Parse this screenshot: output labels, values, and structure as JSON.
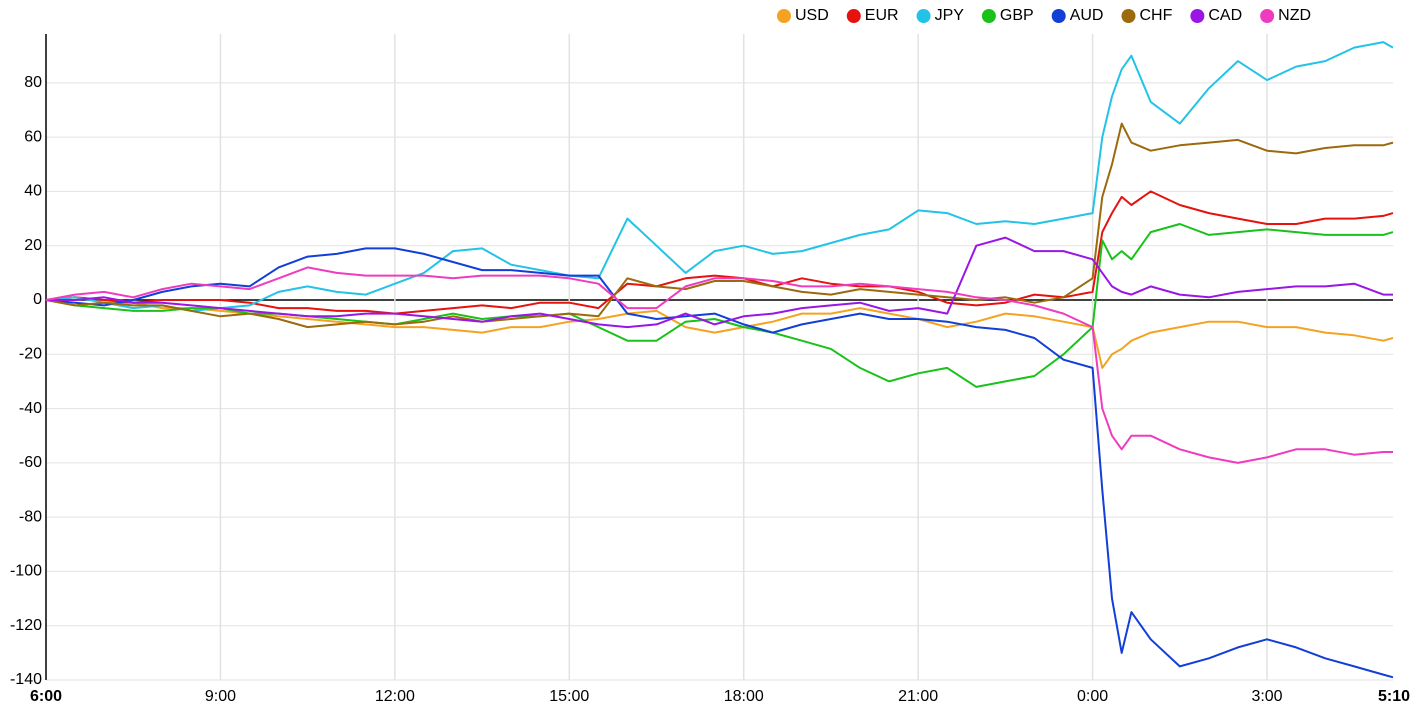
{
  "chart_data": {
    "type": "line",
    "x": [
      "6:00",
      "6:30",
      "7:00",
      "7:30",
      "8:00",
      "8:30",
      "9:00",
      "9:30",
      "10:00",
      "10:30",
      "11:00",
      "11:30",
      "12:00",
      "12:30",
      "13:00",
      "13:30",
      "14:00",
      "14:30",
      "15:00",
      "15:30",
      "16:00",
      "16:30",
      "17:00",
      "17:30",
      "18:00",
      "18:30",
      "19:00",
      "19:30",
      "20:00",
      "20:30",
      "21:00",
      "21:30",
      "22:00",
      "22:30",
      "23:00",
      "23:30",
      "0:00",
      "0:10",
      "0:20",
      "0:30",
      "0:40",
      "1:00",
      "1:30",
      "2:00",
      "2:30",
      "3:00",
      "3:30",
      "4:00",
      "4:30",
      "5:00",
      "5:10"
    ],
    "xticks": [
      "6:00",
      "9:00",
      "12:00",
      "15:00",
      "18:00",
      "21:00",
      "0:00",
      "3:00",
      "5:10"
    ],
    "ylim": [
      -140,
      98
    ],
    "yticks": [
      -140,
      -120,
      -100,
      -80,
      -60,
      -40,
      -20,
      0,
      20,
      40,
      60,
      80
    ],
    "grid": true,
    "legend": "top-right",
    "series": [
      {
        "name": "USD",
        "color": "#f5a221",
        "values": [
          0,
          1,
          -1,
          -1,
          -3,
          -3,
          -4,
          -5,
          -6,
          -7,
          -8,
          -9,
          -10,
          -10,
          -11,
          -12,
          -10,
          -10,
          -8,
          -7,
          -5,
          -4,
          -10,
          -12,
          -10,
          -8,
          -5,
          -5,
          -3,
          -5,
          -7,
          -10,
          -8,
          -5,
          -6,
          -8,
          -10,
          -25,
          -20,
          -18,
          -15,
          -12,
          -10,
          -8,
          -8,
          -10,
          -10,
          -12,
          -13,
          -15,
          -14
        ]
      },
      {
        "name": "EUR",
        "color": "#e5120e",
        "values": [
          0,
          1,
          0,
          -1,
          0,
          0,
          0,
          -1,
          -3,
          -3,
          -4,
          -4,
          -5,
          -4,
          -3,
          -2,
          -3,
          -1,
          -1,
          -3,
          6,
          5,
          8,
          9,
          8,
          5,
          8,
          6,
          5,
          5,
          3,
          -1,
          -2,
          -1,
          2,
          1,
          3,
          25,
          32,
          38,
          35,
          40,
          35,
          32,
          30,
          28,
          28,
          30,
          30,
          31,
          32
        ]
      },
      {
        "name": "JPY",
        "color": "#22c3e6",
        "values": [
          0,
          1,
          -1,
          -3,
          -2,
          -4,
          -3,
          -2,
          3,
          5,
          3,
          2,
          6,
          10,
          18,
          19,
          13,
          11,
          9,
          8,
          30,
          20,
          10,
          18,
          20,
          17,
          18,
          21,
          24,
          26,
          33,
          32,
          28,
          29,
          28,
          30,
          32,
          60,
          75,
          85,
          90,
          73,
          65,
          78,
          88,
          81,
          86,
          88,
          93,
          95,
          93
        ]
      },
      {
        "name": "GBP",
        "color": "#19c219",
        "values": [
          0,
          -2,
          -3,
          -4,
          -4,
          -3,
          -3,
          -5,
          -5,
          -6,
          -7,
          -8,
          -9,
          -7,
          -5,
          -7,
          -6,
          -6,
          -5,
          -10,
          -15,
          -15,
          -8,
          -7,
          -10,
          -12,
          -15,
          -18,
          -25,
          -30,
          -27,
          -25,
          -32,
          -30,
          -28,
          -20,
          -10,
          22,
          15,
          18,
          15,
          25,
          28,
          24,
          25,
          26,
          25,
          24,
          24,
          24,
          25
        ]
      },
      {
        "name": "AUD",
        "color": "#113fd8",
        "values": [
          0,
          -1,
          -2,
          0,
          3,
          5,
          6,
          5,
          12,
          16,
          17,
          19,
          19,
          17,
          14,
          11,
          11,
          10,
          9,
          9,
          -5,
          -7,
          -6,
          -5,
          -9,
          -12,
          -9,
          -7,
          -5,
          -7,
          -7,
          -8,
          -10,
          -11,
          -14,
          -22,
          -25,
          -70,
          -110,
          -130,
          -115,
          -125,
          -135,
          -132,
          -128,
          -125,
          -128,
          -132,
          -135,
          -138,
          -139
        ]
      },
      {
        "name": "CHF",
        "color": "#9b6a0c",
        "values": [
          0,
          -2,
          -1,
          -2,
          -2,
          -4,
          -6,
          -5,
          -7,
          -10,
          -9,
          -8,
          -9,
          -8,
          -6,
          -8,
          -7,
          -6,
          -5,
          -6,
          8,
          5,
          4,
          7,
          7,
          5,
          3,
          2,
          4,
          3,
          2,
          1,
          0,
          1,
          -1,
          1,
          8,
          38,
          50,
          65,
          58,
          55,
          57,
          58,
          59,
          55,
          54,
          56,
          57,
          57,
          58
        ]
      },
      {
        "name": "CAD",
        "color": "#9a16e6",
        "values": [
          0,
          0,
          1,
          -1,
          -1,
          -2,
          -3,
          -4,
          -5,
          -6,
          -6,
          -5,
          -5,
          -6,
          -7,
          -8,
          -6,
          -5,
          -7,
          -9,
          -10,
          -9,
          -5,
          -9,
          -6,
          -5,
          -3,
          -2,
          -1,
          -4,
          -3,
          -5,
          20,
          23,
          18,
          18,
          15,
          10,
          5,
          3,
          2,
          5,
          2,
          1,
          3,
          4,
          5,
          5,
          6,
          2,
          2
        ]
      },
      {
        "name": "NZD",
        "color": "#ef3cbf",
        "values": [
          0,
          2,
          3,
          1,
          4,
          6,
          5,
          4,
          8,
          12,
          10,
          9,
          9,
          9,
          8,
          9,
          9,
          9,
          8,
          6,
          -3,
          -3,
          5,
          8,
          8,
          7,
          5,
          5,
          6,
          5,
          4,
          3,
          1,
          0,
          -2,
          -5,
          -10,
          -40,
          -50,
          -55,
          -50,
          -50,
          -55,
          -58,
          -60,
          -58,
          -55,
          -55,
          -57,
          -56,
          -56
        ]
      }
    ]
  }
}
